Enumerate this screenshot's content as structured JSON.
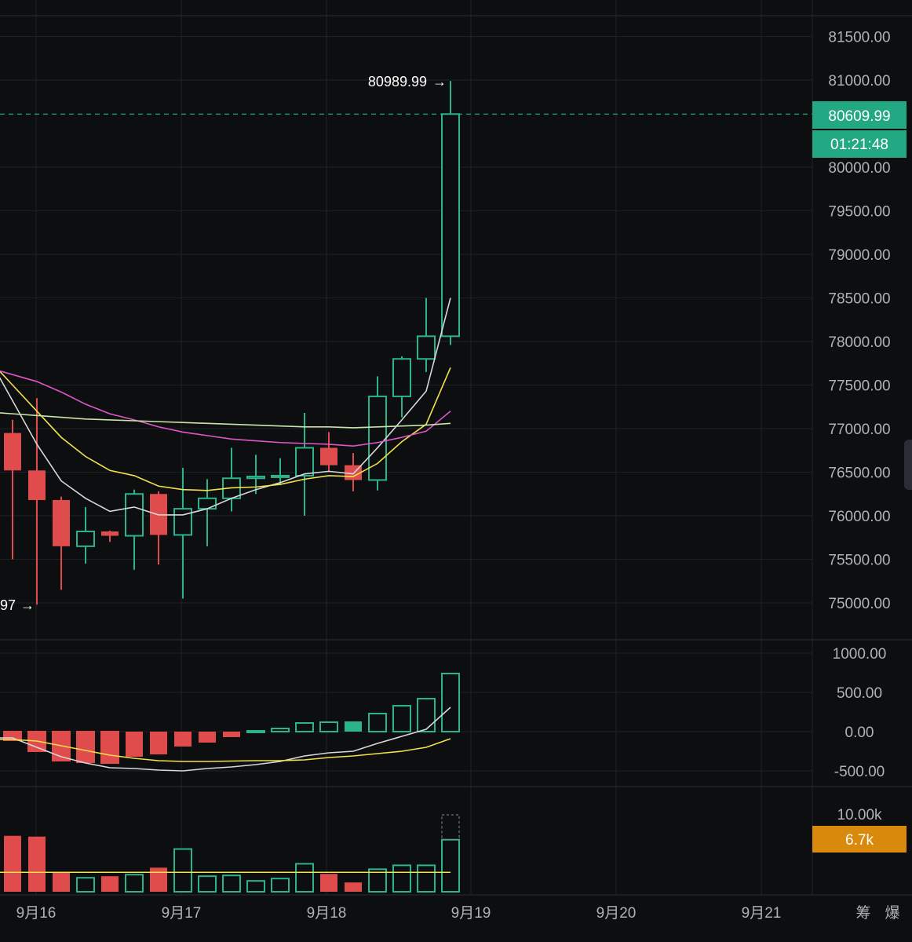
{
  "colors": {
    "up": "#2bb38a",
    "down": "#e04b4b",
    "ma_white": "#d8d8d8",
    "ma_yellow": "#f2e24b",
    "ma_pink": "#e055c8",
    "ma_green": "#c8e6a8",
    "price_badge": "#22a883",
    "vol_badge": "#d9890b",
    "grid": "#1e2126"
  },
  "x_axis": {
    "labels": [
      "9月16",
      "9月17",
      "9月18",
      "9月19",
      "9月20",
      "9月21"
    ],
    "right_icons": [
      "筹",
      "爆"
    ]
  },
  "price_axis": {
    "ticks": [
      "81500.00",
      "81000.00",
      "80000.00",
      "79500.00",
      "79000.00",
      "78500.00",
      "78000.00",
      "77500.00",
      "77000.00",
      "76500.00",
      "76000.00",
      "75500.00",
      "75000.00"
    ],
    "current_price": "80609.99",
    "countdown": "01:21:48"
  },
  "macd_axis": {
    "ticks": [
      "1000.00",
      "500.00",
      "0.00",
      "-500.00"
    ]
  },
  "volume_axis": {
    "ticks": [
      "10.00k"
    ],
    "current_volume": "6.7k"
  },
  "annotations": {
    "high_label": "80989.99",
    "low_label": "97"
  },
  "chart_data": [
    {
      "type": "candlestick",
      "ylim": [
        74600,
        81700
      ],
      "candles": [
        {
          "o": 76950,
          "h": 77100,
          "l": 75500,
          "c": 76520
        },
        {
          "o": 76520,
          "h": 77350,
          "l": 74980,
          "c": 76180
        },
        {
          "o": 76180,
          "h": 76220,
          "l": 75150,
          "c": 75650
        },
        {
          "o": 75650,
          "h": 76100,
          "l": 75450,
          "c": 75820
        },
        {
          "o": 75820,
          "h": 75830,
          "l": 75700,
          "c": 75770
        },
        {
          "o": 75770,
          "h": 76300,
          "l": 75380,
          "c": 76250
        },
        {
          "o": 76250,
          "h": 76280,
          "l": 75440,
          "c": 75780
        },
        {
          "o": 75780,
          "h": 76550,
          "l": 75050,
          "c": 76080
        },
        {
          "o": 76080,
          "h": 76420,
          "l": 75650,
          "c": 76200
        },
        {
          "o": 76200,
          "h": 76780,
          "l": 76050,
          "c": 76430
        },
        {
          "o": 76430,
          "h": 76700,
          "l": 76250,
          "c": 76450
        },
        {
          "o": 76450,
          "h": 76660,
          "l": 76350,
          "c": 76460
        },
        {
          "o": 76460,
          "h": 77180,
          "l": 76000,
          "c": 76780
        },
        {
          "o": 76780,
          "h": 76960,
          "l": 76500,
          "c": 76580
        },
        {
          "o": 76580,
          "h": 76720,
          "l": 76280,
          "c": 76410
        },
        {
          "o": 76410,
          "h": 77600,
          "l": 76290,
          "c": 77370
        },
        {
          "o": 77370,
          "h": 77830,
          "l": 77130,
          "c": 77800
        },
        {
          "o": 77800,
          "h": 78500,
          "l": 77650,
          "c": 78060
        },
        {
          "o": 78060,
          "h": 80990,
          "l": 77960,
          "c": 80610
        }
      ],
      "ma_series": [
        {
          "color_key": "ma_white",
          "values": [
            77320,
            76820,
            76400,
            76200,
            76050,
            76100,
            76010,
            76010,
            76080,
            76200,
            76300,
            76380,
            76480,
            76510,
            76480,
            76780,
            77100,
            77430,
            78500
          ]
        },
        {
          "color_key": "ma_yellow",
          "values": [
            77500,
            77200,
            76900,
            76680,
            76520,
            76460,
            76340,
            76300,
            76290,
            76320,
            76330,
            76360,
            76420,
            76460,
            76450,
            76600,
            76850,
            77050,
            77700
          ]
        },
        {
          "color_key": "ma_pink",
          "values": [
            77620,
            77540,
            77420,
            77280,
            77170,
            77100,
            77020,
            76960,
            76920,
            76880,
            76860,
            76840,
            76830,
            76820,
            76800,
            76840,
            76900,
            76970,
            77200
          ]
        },
        {
          "color_key": "ma_green",
          "values": [
            77170,
            77150,
            77130,
            77110,
            77100,
            77090,
            77080,
            77070,
            77060,
            77050,
            77040,
            77030,
            77020,
            77020,
            77010,
            77020,
            77030,
            77040,
            77060
          ]
        }
      ]
    },
    {
      "type": "bar",
      "name": "MACD",
      "ylim": [
        -700,
        1130
      ],
      "values": [
        -110,
        -250,
        -370,
        -390,
        -400,
        -320,
        -290,
        -190,
        -140,
        -70,
        10,
        40,
        110,
        120,
        130,
        230,
        330,
        420,
        740
      ],
      "lines": [
        {
          "color_key": "ma_white",
          "values": [
            -80,
            -200,
            -320,
            -400,
            -460,
            -470,
            -490,
            -500,
            -470,
            -450,
            -420,
            -380,
            -310,
            -270,
            -250,
            -150,
            -60,
            30,
            310
          ]
        },
        {
          "color_key": "ma_yellow",
          "values": [
            -100,
            -120,
            -180,
            -240,
            -300,
            -340,
            -370,
            -380,
            -380,
            -375,
            -370,
            -370,
            -360,
            -330,
            -310,
            -280,
            -250,
            -200,
            -90
          ]
        }
      ]
    },
    {
      "type": "bar",
      "name": "Volume",
      "ylim": [
        0,
        11000
      ],
      "values": [
        7200,
        7100,
        2500,
        1800,
        2000,
        2200,
        3100,
        5500,
        2000,
        2100,
        1400,
        1700,
        3600,
        2300,
        1200,
        2900,
        3400,
        3400,
        6700
      ],
      "ma_value": 2500
    }
  ]
}
